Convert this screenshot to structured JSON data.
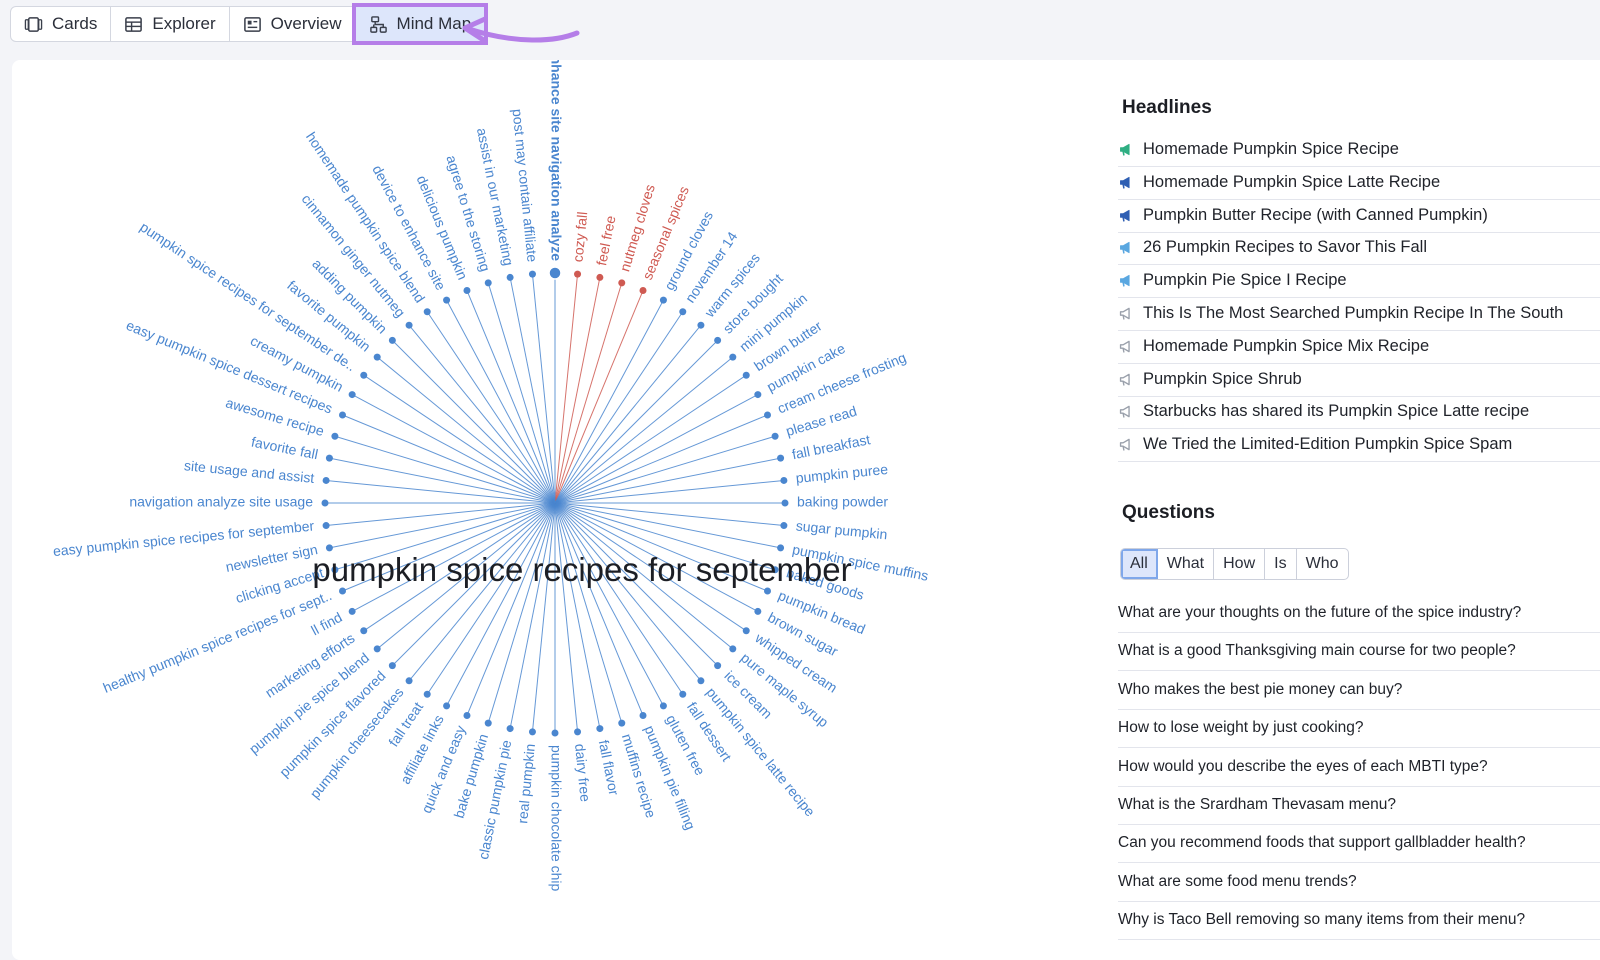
{
  "tabs": [
    {
      "label": "Cards",
      "icon": "cards-icon"
    },
    {
      "label": "Explorer",
      "icon": "table-icon"
    },
    {
      "label": "Overview",
      "icon": "overview-icon"
    },
    {
      "label": "Mind Map",
      "icon": "mindmap-icon",
      "active": true
    }
  ],
  "colors": {
    "accent_outline": "#b57ee8",
    "node_blue": "#4a86cf",
    "node_red": "#cf5a52",
    "node_green": "#2fae82"
  },
  "mindmap": {
    "root": "pumpkin spice recipes for september",
    "nodes": [
      {
        "label": "cozy fall",
        "color": "red"
      },
      {
        "label": "feel free",
        "color": "red"
      },
      {
        "label": "nutmeg cloves",
        "color": "red"
      },
      {
        "label": "seasonal spices",
        "color": "red"
      },
      {
        "label": "ground cloves",
        "color": "blue"
      },
      {
        "label": "november 14",
        "color": "blue"
      },
      {
        "label": "warm spices",
        "color": "blue"
      },
      {
        "label": "store bought",
        "color": "blue"
      },
      {
        "label": "mini pumpkin",
        "color": "blue"
      },
      {
        "label": "brown butter",
        "color": "blue"
      },
      {
        "label": "pumpkin cake",
        "color": "blue"
      },
      {
        "label": "cream cheese frosting",
        "color": "blue"
      },
      {
        "label": "please read",
        "color": "blue"
      },
      {
        "label": "fall breakfast",
        "color": "blue"
      },
      {
        "label": "pumpkin puree",
        "color": "blue"
      },
      {
        "label": "baking powder",
        "color": "blue"
      },
      {
        "label": "sugar pumpkin",
        "color": "blue"
      },
      {
        "label": "pumpkin spice muffins",
        "color": "blue"
      },
      {
        "label": "baked goods",
        "color": "blue"
      },
      {
        "label": "pumpkin bread",
        "color": "blue"
      },
      {
        "label": "brown sugar",
        "color": "blue"
      },
      {
        "label": "whipped cream",
        "color": "blue"
      },
      {
        "label": "pure maple syrup",
        "color": "blue"
      },
      {
        "label": "ice cream",
        "color": "blue"
      },
      {
        "label": "pumpkin spice latte recipe",
        "color": "blue"
      },
      {
        "label": "fall dessert",
        "color": "blue"
      },
      {
        "label": "gluten free",
        "color": "blue"
      },
      {
        "label": "pumpkin pie filling",
        "color": "blue"
      },
      {
        "label": "muffins recipe",
        "color": "blue"
      },
      {
        "label": "fall flavor",
        "color": "blue"
      },
      {
        "label": "dairy free",
        "color": "blue"
      },
      {
        "label": "pumpkin chocolate chip",
        "color": "blue"
      },
      {
        "label": "real pumpkin",
        "color": "blue"
      },
      {
        "label": "classic pumpkin pie",
        "color": "blue"
      },
      {
        "label": "bake pumpkin",
        "color": "blue"
      },
      {
        "label": "quick and easy",
        "color": "blue"
      },
      {
        "label": "affiliate links",
        "color": "blue"
      },
      {
        "label": "fall treat",
        "color": "blue"
      },
      {
        "label": "pumpkin cheesecakes",
        "color": "blue"
      },
      {
        "label": "pumpkin spice flavored",
        "color": "blue"
      },
      {
        "label": "pumpkin pie spice blend",
        "color": "blue"
      },
      {
        "label": "marketing efforts",
        "color": "blue"
      },
      {
        "label": "ll find",
        "color": "blue"
      },
      {
        "label": "healthy pumpkin spice recipes for sept..",
        "color": "blue"
      },
      {
        "label": "clicking accept",
        "color": "blue"
      },
      {
        "label": "newsletter sign",
        "color": "blue"
      },
      {
        "label": "easy pumpkin spice recipes for september",
        "color": "blue"
      },
      {
        "label": "navigation analyze site usage",
        "color": "blue"
      },
      {
        "label": "site usage and assist",
        "color": "blue"
      },
      {
        "label": "favorite fall",
        "color": "blue"
      },
      {
        "label": "awesome recipe",
        "color": "blue"
      },
      {
        "label": "easy pumpkin spice dessert recipes",
        "color": "blue"
      },
      {
        "label": "creamy pumpkin",
        "color": "blue"
      },
      {
        "label": "pumpkin spice recipes for september de..",
        "color": "blue"
      },
      {
        "label": "favorite pumpkin",
        "color": "blue"
      },
      {
        "label": "adding pumpkin",
        "color": "blue"
      },
      {
        "label": "cinnamon ginger nutmeg",
        "color": "blue"
      },
      {
        "label": "homemade pumpkin spice blend",
        "color": "blue"
      },
      {
        "label": "device to enhance site",
        "color": "blue"
      },
      {
        "label": "delicious pumpkin",
        "color": "blue"
      },
      {
        "label": "agree to the storing",
        "color": "blue"
      },
      {
        "label": "assist in our marketing",
        "color": "blue"
      },
      {
        "label": "post may contain affiliate",
        "color": "blue"
      },
      {
        "label": "enhance site navigation analyze",
        "color": "blue",
        "selected": true
      }
    ]
  },
  "headlines": {
    "title": "Headlines",
    "items": [
      {
        "text": "Homemade Pumpkin Spice Recipe",
        "icon_color": "#2fae82"
      },
      {
        "text": "Homemade Pumpkin Spice Latte Recipe",
        "icon_color": "#2f5fb3"
      },
      {
        "text": "Pumpkin Butter Recipe (with Canned Pumpkin)",
        "icon_color": "#2f5fb3"
      },
      {
        "text": "26 Pumpkin Recipes to Savor This Fall",
        "icon_color": "#5aa7e0"
      },
      {
        "text": "Pumpkin Pie Spice I Recipe",
        "icon_color": "#5aa7e0"
      },
      {
        "text": "This Is The Most Searched Pumpkin Recipe In The South",
        "icon_color": "#9aa0ab"
      },
      {
        "text": "Homemade Pumpkin Spice Mix Recipe",
        "icon_color": "#9aa0ab"
      },
      {
        "text": "Pumpkin Spice Shrub",
        "icon_color": "#9aa0ab"
      },
      {
        "text": "Starbucks has shared its Pumpkin Spice Latte recipe",
        "icon_color": "#9aa0ab"
      },
      {
        "text": "We Tried the Limited-Edition Pumpkin Spice Spam",
        "icon_color": "#9aa0ab"
      }
    ]
  },
  "questions": {
    "title": "Questions",
    "filters": [
      "All",
      "What",
      "How",
      "Is",
      "Who"
    ],
    "selected_filter": "All",
    "items": [
      "What are your thoughts on the future of the spice industry?",
      "What is a good Thanksgiving main course for two people?",
      "Who makes the best pie money can buy?",
      "How to lose weight by just cooking?",
      "How would you describe the eyes of each MBTI type?",
      "What is the Srardham Thevasam menu?",
      "Can you recommend foods that support gallbladder health?",
      "What are some food menu trends?",
      "Why is Taco Bell removing so many items from their menu?"
    ]
  }
}
